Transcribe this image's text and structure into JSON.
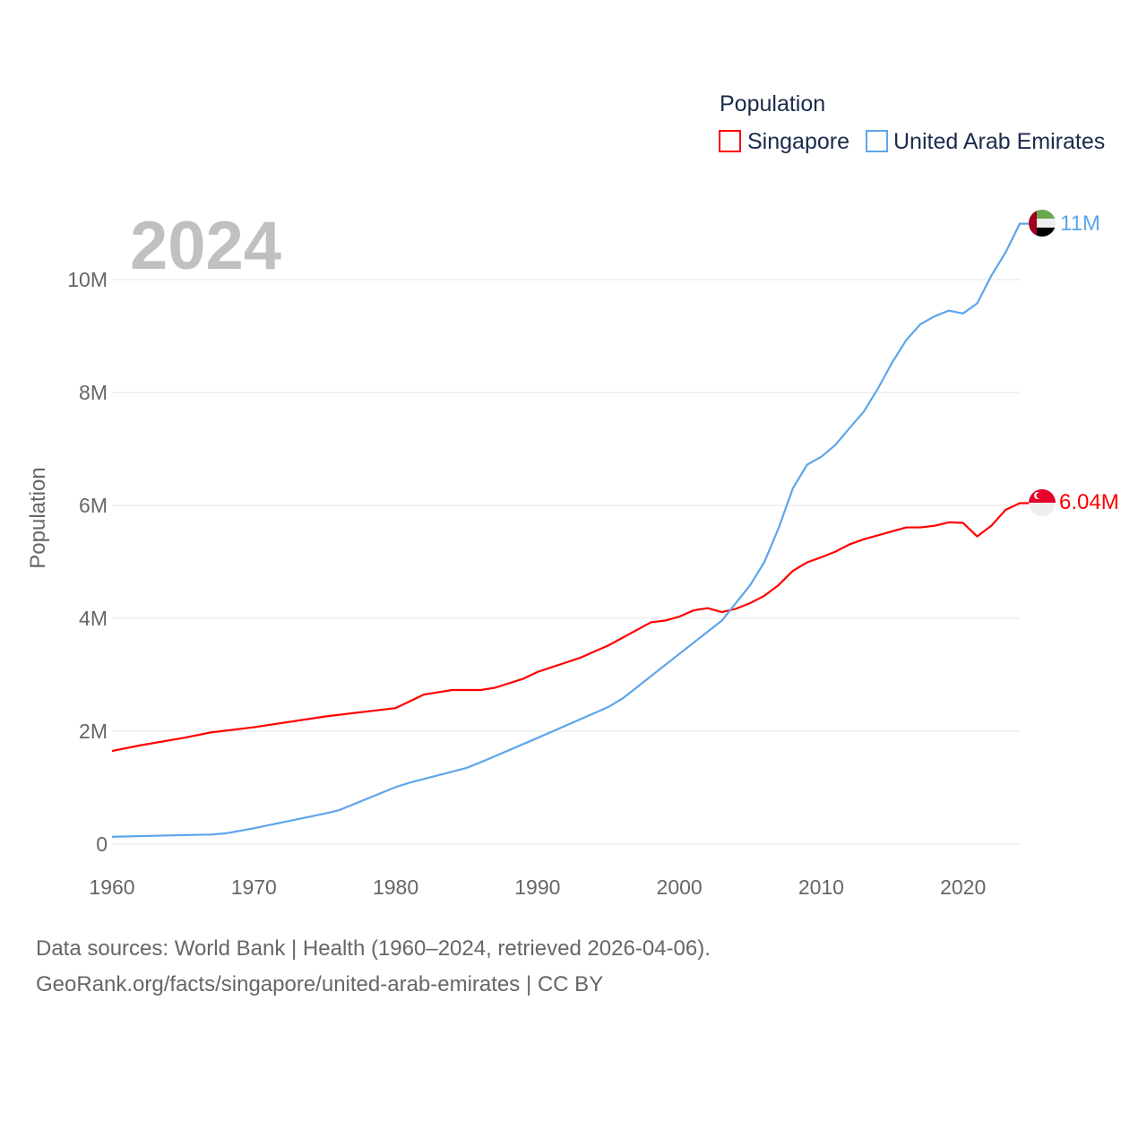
{
  "chart_data": {
    "type": "line",
    "title": "Population",
    "ylabel": "Population",
    "xlabel": "",
    "year_label": "2024",
    "xlim": [
      1960,
      2024
    ],
    "ylim": [
      0,
      11000000
    ],
    "x_ticks": [
      1960,
      1970,
      1980,
      1990,
      2000,
      2010,
      2020
    ],
    "x_tick_labels": [
      "1960",
      "1970",
      "1980",
      "1990",
      "2000",
      "2010",
      "2020"
    ],
    "y_ticks": [
      0,
      2000000,
      4000000,
      6000000,
      8000000,
      10000000
    ],
    "y_tick_labels": [
      "0",
      "2M",
      "4M",
      "6M",
      "8M",
      "10M"
    ],
    "grid": true,
    "legend_title": "Population",
    "legend_position": "top-right",
    "series": [
      {
        "name": "Singapore",
        "color": "#ff0000",
        "end_label": "6.04M",
        "flag": "singapore-flag",
        "points": [
          [
            1960,
            1.65
          ],
          [
            1962,
            1.75
          ],
          [
            1965,
            1.88
          ],
          [
            1967,
            1.98
          ],
          [
            1970,
            2.07
          ],
          [
            1975,
            2.26
          ],
          [
            1978,
            2.35
          ],
          [
            1980,
            2.41
          ],
          [
            1982,
            2.65
          ],
          [
            1984,
            2.73
          ],
          [
            1986,
            2.73
          ],
          [
            1987,
            2.77
          ],
          [
            1989,
            2.93
          ],
          [
            1990,
            3.05
          ],
          [
            1993,
            3.3
          ],
          [
            1995,
            3.52
          ],
          [
            1998,
            3.93
          ],
          [
            1999,
            3.96
          ],
          [
            2000,
            4.03
          ],
          [
            2001,
            4.14
          ],
          [
            2002,
            4.18
          ],
          [
            2003,
            4.11
          ],
          [
            2004,
            4.17
          ],
          [
            2005,
            4.27
          ],
          [
            2006,
            4.4
          ],
          [
            2007,
            4.59
          ],
          [
            2008,
            4.84
          ],
          [
            2009,
            4.99
          ],
          [
            2010,
            5.08
          ],
          [
            2011,
            5.18
          ],
          [
            2012,
            5.31
          ],
          [
            2013,
            5.4
          ],
          [
            2014,
            5.47
          ],
          [
            2015,
            5.54
          ],
          [
            2016,
            5.61
          ],
          [
            2017,
            5.61
          ],
          [
            2018,
            5.64
          ],
          [
            2019,
            5.7
          ],
          [
            2020,
            5.69
          ],
          [
            2021,
            5.45
          ],
          [
            2022,
            5.64
          ],
          [
            2023,
            5.92
          ],
          [
            2024,
            6.04
          ]
        ]
      },
      {
        "name": "United Arab Emirates",
        "color": "#5da5ea",
        "end_label": "11M",
        "flag": "uae-flag",
        "points": [
          [
            1960,
            0.13
          ],
          [
            1965,
            0.16
          ],
          [
            1967,
            0.17
          ],
          [
            1968,
            0.19
          ],
          [
            1970,
            0.28
          ],
          [
            1975,
            0.54
          ],
          [
            1976,
            0.6
          ],
          [
            1980,
            1.01
          ],
          [
            1981,
            1.09
          ],
          [
            1985,
            1.35
          ],
          [
            1986,
            1.45
          ],
          [
            1990,
            1.88
          ],
          [
            1995,
            2.43
          ],
          [
            1996,
            2.58
          ],
          [
            2000,
            3.37
          ],
          [
            2003,
            3.96
          ],
          [
            2005,
            4.59
          ],
          [
            2006,
            5.0
          ],
          [
            2007,
            5.6
          ],
          [
            2008,
            6.3
          ],
          [
            2009,
            6.72
          ],
          [
            2010,
            6.86
          ],
          [
            2011,
            7.07
          ],
          [
            2012,
            7.37
          ],
          [
            2013,
            7.66
          ],
          [
            2014,
            8.07
          ],
          [
            2015,
            8.53
          ],
          [
            2016,
            8.93
          ],
          [
            2017,
            9.21
          ],
          [
            2018,
            9.35
          ],
          [
            2019,
            9.45
          ],
          [
            2020,
            9.4
          ],
          [
            2021,
            9.58
          ],
          [
            2022,
            10.07
          ],
          [
            2023,
            10.48
          ],
          [
            2024,
            10.99
          ]
        ]
      }
    ]
  },
  "footer": {
    "line1": "Data sources: World Bank | Health (1960–2024, retrieved 2026-04-06).",
    "line2": "GeoRank.org/facts/singapore/united-arab-emirates | CC BY"
  }
}
